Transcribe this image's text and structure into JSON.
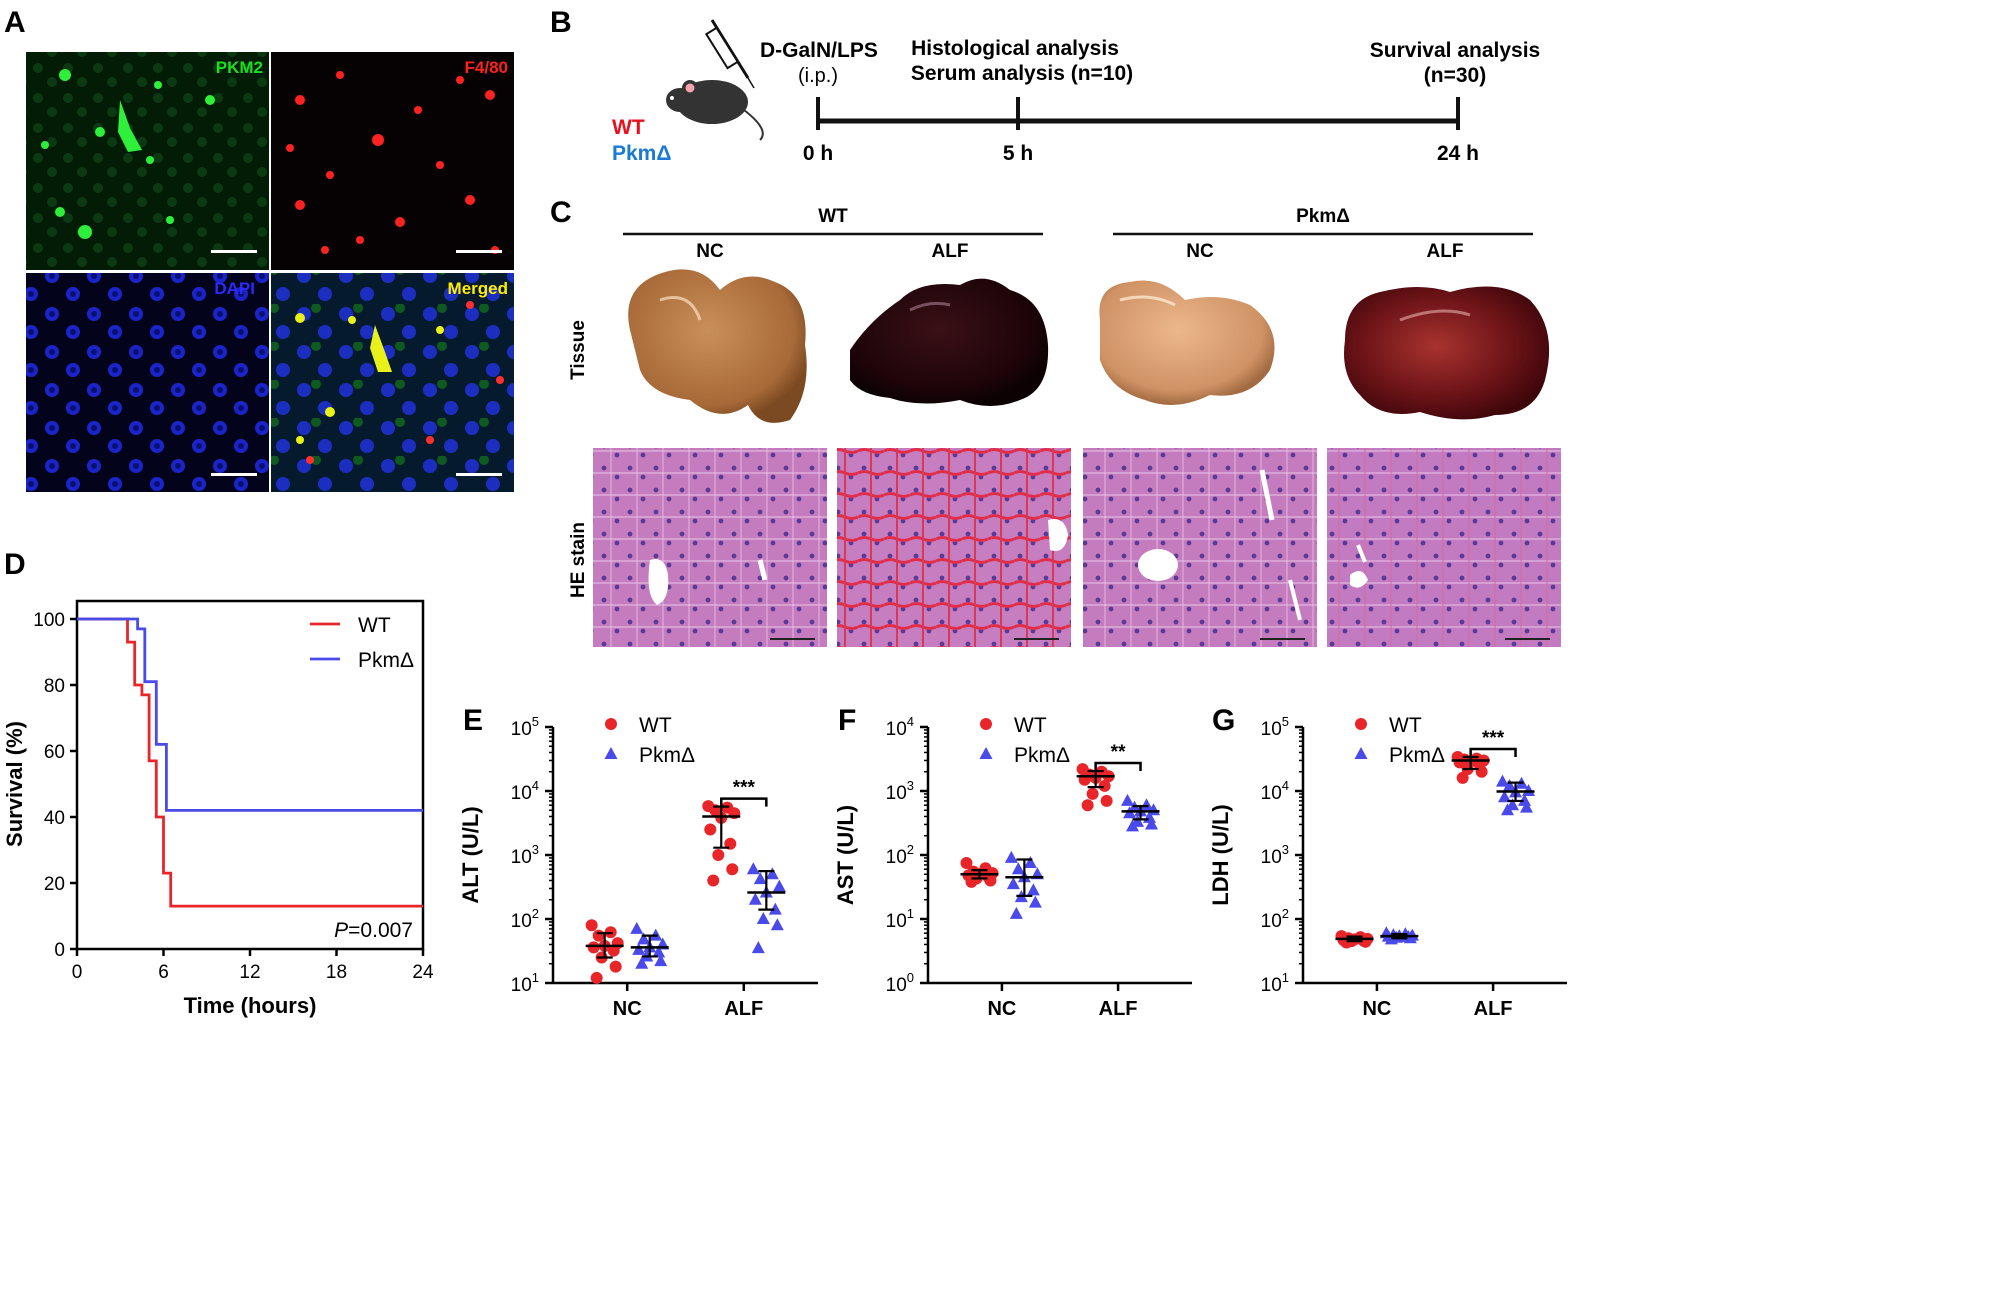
{
  "panel_letters": {
    "a": "A",
    "b": "B",
    "c": "C",
    "d": "D",
    "e": "E",
    "f": "F",
    "g": "G"
  },
  "panel_a": {
    "labels": {
      "pkm2": "PKM2",
      "f480": "F4/80",
      "dapi": "DAPI",
      "merged": "Merged"
    },
    "colors": {
      "pkm2": "#18e01c",
      "f480": "#ff2020",
      "dapi": "#2a2aff",
      "merged": "#ffee00"
    }
  },
  "panel_b": {
    "treatment": "D-GalN/LPS",
    "route": "(i.p.)",
    "histology": "Histological analysis",
    "serum": "Serum analysis (n=10)",
    "survival": "Survival analysis",
    "survival_n": "(n=30)",
    "wt": "WT",
    "pkm": "PkmΔ",
    "t0": "0 h",
    "t5": "5 h",
    "t24": "24 h",
    "timepoints_h": [
      0,
      5,
      24
    ]
  },
  "panel_c": {
    "group_wt": "WT",
    "group_pkm": "PkmΔ",
    "cond": [
      "NC",
      "ALF",
      "NC",
      "ALF"
    ],
    "row_tissue": "Tissue",
    "row_he": "HE stain"
  },
  "colors": {
    "wt": "#e8262a",
    "pkm": "#4a4aea",
    "text_wt": "#e8101c",
    "text_pkm": "#1a7ad4"
  },
  "chart_data": [
    {
      "type": "line",
      "ylabel": "Survival (%)",
      "xlabel": "Time (hours)",
      "xticks": [
        "0",
        "6",
        "12",
        "18",
        "24"
      ],
      "yticks": [
        "0",
        "20",
        "40",
        "60",
        "80",
        "100"
      ],
      "xlim": [
        0,
        24
      ],
      "ylim": [
        0,
        100
      ],
      "annotation_p": "P",
      "annotation_val": "=0.007",
      "series": [
        {
          "name": "WT",
          "points": [
            [
              0,
              100
            ],
            [
              3.5,
              100
            ],
            [
              3.5,
              93
            ],
            [
              4,
              93
            ],
            [
              4,
              80
            ],
            [
              4.5,
              80
            ],
            [
              4.5,
              77
            ],
            [
              5,
              77
            ],
            [
              5,
              57
            ],
            [
              5.5,
              57
            ],
            [
              5.5,
              40
            ],
            [
              6,
              40
            ],
            [
              6,
              23
            ],
            [
              6.5,
              23
            ],
            [
              6.5,
              13
            ],
            [
              24,
              13
            ]
          ]
        },
        {
          "name": "PkmΔ",
          "points": [
            [
              0,
              100
            ],
            [
              4.2,
              100
            ],
            [
              4.2,
              97
            ],
            [
              4.7,
              97
            ],
            [
              4.7,
              81
            ],
            [
              5.5,
              81
            ],
            [
              5.5,
              62
            ],
            [
              6.2,
              62
            ],
            [
              6.2,
              42
            ],
            [
              24,
              42
            ]
          ]
        }
      ]
    },
    {
      "type": "scatter",
      "label": "E",
      "ylabel": "ALT (U/L)",
      "categories": [
        "NC",
        "ALF"
      ],
      "yscale": "log",
      "ylim": [
        10,
        100000
      ],
      "yticks": [
        {
          "b": "10",
          "e": "1"
        },
        {
          "b": "10",
          "e": "2"
        },
        {
          "b": "10",
          "e": "3"
        },
        {
          "b": "10",
          "e": "4"
        },
        {
          "b": "10",
          "e": "5"
        }
      ],
      "significance": "***",
      "series": [
        {
          "name": "WT",
          "median": [
            38,
            4000
          ],
          "range": [
            [
              25,
              60
            ],
            [
              1300,
              5700
            ]
          ],
          "points": [
            [
              80,
              62,
              55,
              42,
              38,
              36,
              32,
              25,
              18,
              12
            ],
            [
              5800,
              5500,
              5000,
              4500,
              3800,
              2500,
              1500,
              1000,
              600,
              400
            ]
          ]
        },
        {
          "name": "PkmΔ",
          "median": [
            36,
            260
          ],
          "range": [
            [
              26,
              55
            ],
            [
              140,
              560
            ]
          ],
          "points": [
            [
              70,
              55,
              48,
              40,
              36,
              33,
              30,
              26,
              22,
              20
            ],
            [
              600,
              500,
              420,
              320,
              260,
              200,
              140,
              100,
              80,
              35
            ]
          ]
        }
      ]
    },
    {
      "type": "scatter",
      "label": "F",
      "ylabel": "AST (U/L)",
      "categories": [
        "NC",
        "ALF"
      ],
      "yscale": "log",
      "ylim": [
        1,
        10000
      ],
      "yticks": [
        {
          "b": "10",
          "e": "0"
        },
        {
          "b": "10",
          "e": "1"
        },
        {
          "b": "10",
          "e": "2"
        },
        {
          "b": "10",
          "e": "3"
        },
        {
          "b": "10",
          "e": "4"
        }
      ],
      "significance": "**",
      "series": [
        {
          "name": "WT",
          "median": [
            50,
            1700
          ],
          "range": [
            [
              43,
              58
            ],
            [
              1150,
              2050
            ]
          ],
          "points": [
            [
              75,
              62,
              55,
              52,
              50,
              48,
              45,
              43,
              40,
              38
            ],
            [
              2200,
              2000,
              1800,
              1700,
              1600,
              1500,
              1200,
              900,
              700,
              600
            ]
          ]
        },
        {
          "name": "PkmΔ",
          "median": [
            45,
            480
          ],
          "range": [
            [
              23,
              85
            ],
            [
              360,
              580
            ]
          ],
          "points": [
            [
              90,
              75,
              60,
              50,
              45,
              35,
              28,
              22,
              18,
              12
            ],
            [
              700,
              600,
              550,
              500,
              480,
              450,
              380,
              330,
              300,
              280
            ]
          ]
        }
      ]
    },
    {
      "type": "scatter",
      "label": "G",
      "ylabel": "LDH (U/L)",
      "categories": [
        "NC",
        "ALF"
      ],
      "yscale": "log",
      "ylim": [
        10,
        100000
      ],
      "yticks": [
        {
          "b": "10",
          "e": "1"
        },
        {
          "b": "10",
          "e": "2"
        },
        {
          "b": "10",
          "e": "3"
        },
        {
          "b": "10",
          "e": "4"
        },
        {
          "b": "10",
          "e": "5"
        }
      ],
      "significance": "***",
      "series": [
        {
          "name": "WT",
          "median": [
            49,
            30000
          ],
          "range": [
            [
              45,
              53
            ],
            [
              22000,
              34000
            ]
          ],
          "points": [
            [
              54,
              52,
              50,
              49,
              48,
              47,
              46,
              45,
              44,
              43
            ],
            [
              34000,
              32000,
              31000,
              30000,
              29000,
              28000,
              26000,
              22000,
              20000,
              16000
            ]
          ]
        },
        {
          "name": "PkmΔ",
          "median": [
            54,
            9800
          ],
          "range": [
            [
              50,
              58
            ],
            [
              7000,
              13500
            ]
          ],
          "points": [
            [
              60,
              58,
              56,
              55,
              54,
              53,
              52,
              51,
              50,
              48
            ],
            [
              14000,
              13000,
              12000,
              10000,
              9500,
              8000,
              7000,
              6000,
              5500,
              5000
            ]
          ]
        }
      ]
    }
  ]
}
